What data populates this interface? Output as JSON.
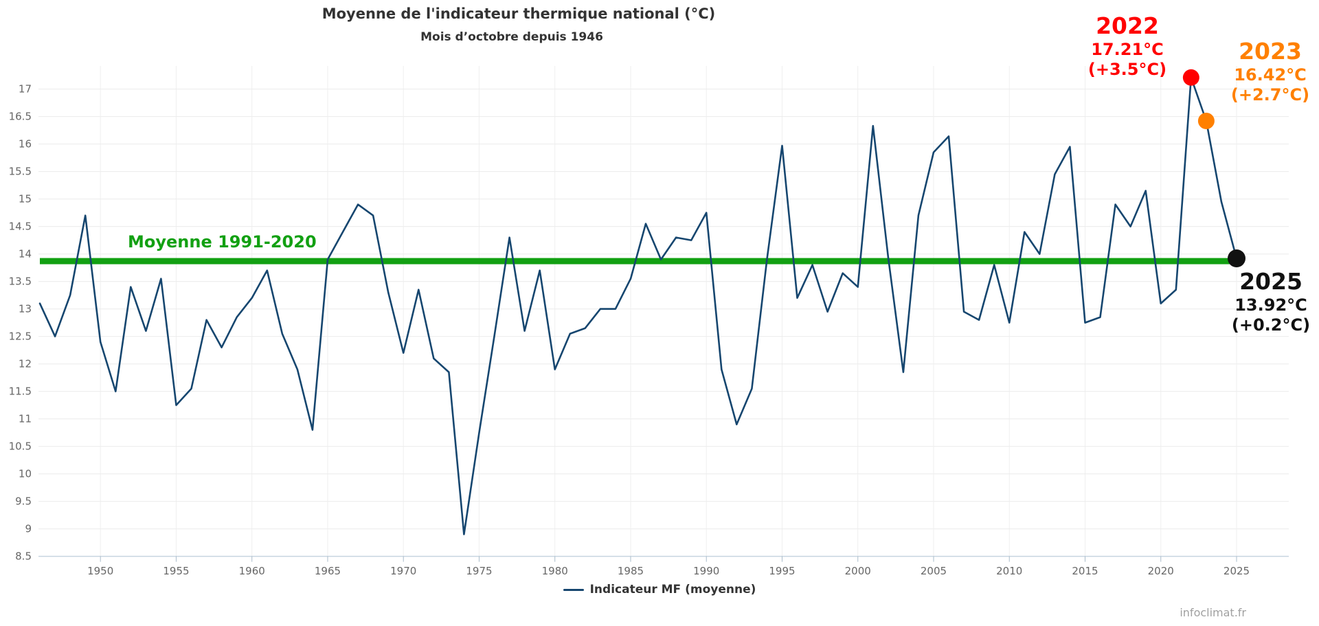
{
  "title": "Moyenne de l'indicateur thermique national (°C)",
  "subtitle": "Mois d’octobre depuis 1946",
  "legend": {
    "label": "Indicateur MF (moyenne)"
  },
  "watermark": "infoclimat.fr",
  "mean_line": {
    "label": "Moyenne 1991-2020",
    "value": 13.87,
    "color": "#12a012"
  },
  "annotations": [
    {
      "year": "2022",
      "temp": "17.21°C",
      "anomaly": "(+3.5°C)",
      "color": "#ff0000"
    },
    {
      "year": "2023",
      "temp": "16.42°C",
      "anomaly": "(+2.7°C)",
      "color": "#ff8000"
    },
    {
      "year": "2025",
      "temp": "13.92°C",
      "anomaly": "(+0.2°C)",
      "color": "#111111"
    }
  ],
  "chart_data": {
    "type": "line",
    "title": "Moyenne de l'indicateur thermique national (°C)",
    "subtitle": "Mois d’octobre depuis 1946",
    "xlabel": "",
    "ylabel": "",
    "ylim": [
      8.5,
      17.5
    ],
    "grid": true,
    "legend_position": "bottom",
    "x": [
      1946,
      1947,
      1948,
      1949,
      1950,
      1951,
      1952,
      1953,
      1954,
      1955,
      1956,
      1957,
      1958,
      1959,
      1960,
      1961,
      1962,
      1963,
      1964,
      1965,
      1966,
      1967,
      1968,
      1969,
      1970,
      1971,
      1972,
      1973,
      1974,
      1975,
      1976,
      1977,
      1978,
      1979,
      1980,
      1981,
      1982,
      1983,
      1984,
      1985,
      1986,
      1987,
      1988,
      1989,
      1990,
      1991,
      1992,
      1993,
      1994,
      1995,
      1996,
      1997,
      1998,
      1999,
      2000,
      2001,
      2002,
      2003,
      2004,
      2005,
      2006,
      2007,
      2008,
      2009,
      2010,
      2011,
      2012,
      2013,
      2014,
      2015,
      2016,
      2017,
      2018,
      2019,
      2020,
      2021,
      2022,
      2023,
      2024,
      2025
    ],
    "series": [
      {
        "name": "Indicateur MF (moyenne)",
        "color": "#16466f",
        "values": [
          13.1,
          12.5,
          13.25,
          14.7,
          12.4,
          11.5,
          13.4,
          12.6,
          13.55,
          11.25,
          11.55,
          12.8,
          12.3,
          12.85,
          13.2,
          13.7,
          12.55,
          11.9,
          10.8,
          13.9,
          14.4,
          14.9,
          14.7,
          13.3,
          12.2,
          13.35,
          12.1,
          11.85,
          8.9,
          10.75,
          12.5,
          14.3,
          12.6,
          13.7,
          11.9,
          12.55,
          12.65,
          13.0,
          13.0,
          13.55,
          14.55,
          13.9,
          14.3,
          14.25,
          14.75,
          11.9,
          10.9,
          11.55,
          13.9,
          15.97,
          13.2,
          13.8,
          12.95,
          13.65,
          13.4,
          16.33,
          13.95,
          11.85,
          14.7,
          15.85,
          16.14,
          12.95,
          12.8,
          13.8,
          12.75,
          14.4,
          14.0,
          15.45,
          15.95,
          12.75,
          12.85,
          14.9,
          14.5,
          15.15,
          13.1,
          13.35,
          17.21,
          16.42,
          14.95,
          13.92
        ]
      }
    ],
    "yticks": [
      8.5,
      9,
      9.5,
      10,
      10.5,
      11,
      11.5,
      12,
      12.5,
      13,
      13.5,
      14,
      14.5,
      15,
      15.5,
      16,
      16.5,
      17
    ],
    "xticks": [
      1950,
      1955,
      1960,
      1965,
      1970,
      1975,
      1980,
      1985,
      1990,
      1995,
      2000,
      2005,
      2010,
      2015,
      2020,
      2025
    ],
    "reference_line": {
      "label": "Moyenne 1991-2020",
      "value": 13.87,
      "color": "#12a012"
    },
    "highlight_points": [
      {
        "year": 2022,
        "value": 17.21,
        "color": "#ff0000"
      },
      {
        "year": 2023,
        "value": 16.42,
        "color": "#ff8000"
      },
      {
        "year": 2025,
        "value": 13.92,
        "color": "#111111"
      }
    ]
  }
}
